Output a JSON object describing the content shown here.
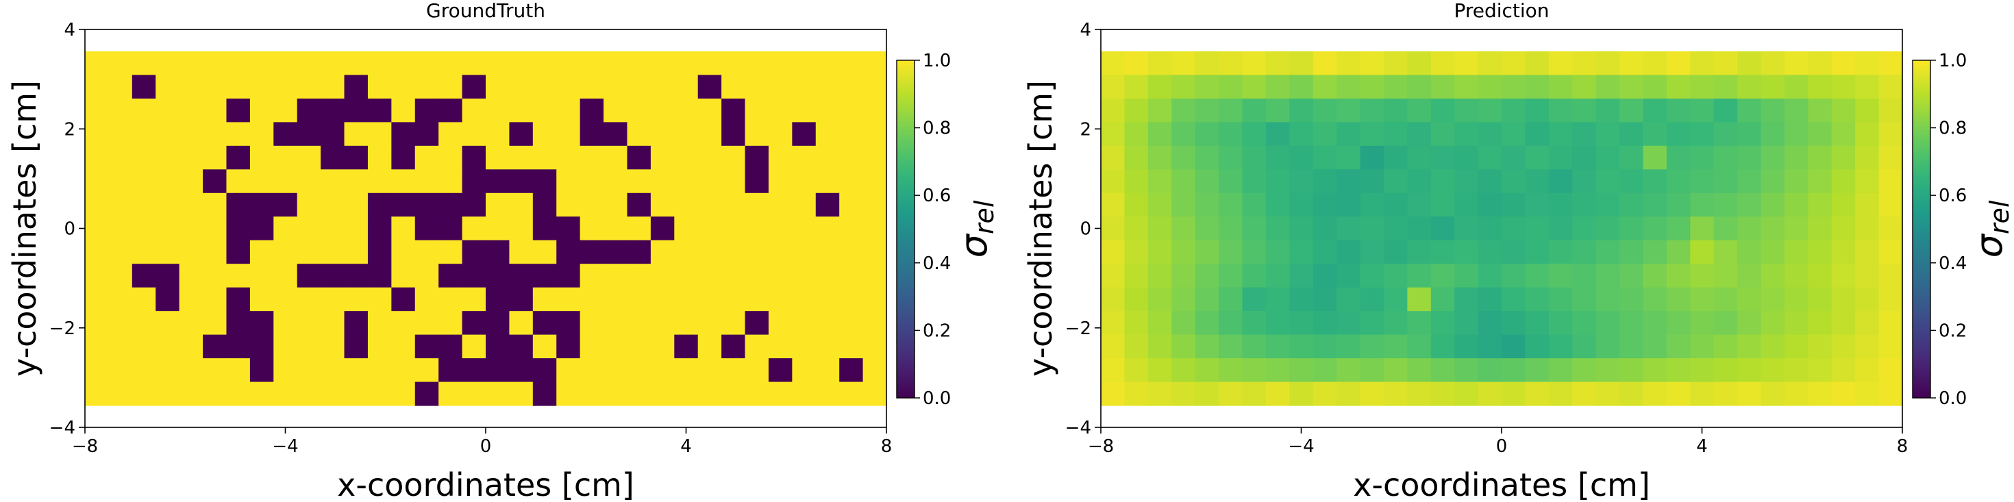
{
  "chart_data": [
    {
      "type": "heatmap",
      "title": "GroundTruth",
      "xlabel": "x-coordinates [cm]",
      "ylabel": "y-coordinates [cm]",
      "colormap": "viridis",
      "x_range": [
        -8,
        8
      ],
      "y_range": [
        -3.56,
        3.56
      ],
      "xlim": [
        -8,
        8
      ],
      "ylim": [
        -4,
        4
      ],
      "xticks": [
        {
          "value": -8,
          "label": "−8"
        },
        {
          "value": -4,
          "label": "−4"
        },
        0,
        4,
        8
      ],
      "yticks": [
        {
          "value": -4,
          "label": "−4"
        },
        {
          "value": -2,
          "label": "−2"
        },
        0,
        2,
        4
      ],
      "colorbar": {
        "range": [
          0,
          1
        ],
        "label": {
          "symbol": "σ",
          "subscript": "rel"
        },
        "ticks": [
          {
            "value": 0,
            "label": "0.0"
          },
          {
            "value": 0.2,
            "label": "0.2"
          },
          {
            "value": 0.4,
            "label": "0.4"
          },
          {
            "value": 0.6,
            "label": "0.6"
          },
          {
            "value": 0.8,
            "label": "0.8"
          },
          {
            "value": 1,
            "label": "1.0"
          }
        ]
      },
      "values": [
        [
          1,
          1,
          1,
          1,
          1,
          1,
          1,
          1,
          1,
          1,
          1,
          1,
          1,
          1,
          1,
          1,
          1,
          1,
          1,
          1,
          1,
          1,
          1,
          1,
          1,
          1,
          1,
          1,
          1,
          1,
          1,
          1,
          1,
          1
        ],
        [
          1,
          1,
          0,
          1,
          1,
          1,
          1,
          1,
          1,
          1,
          1,
          0,
          1,
          1,
          1,
          1,
          0,
          1,
          1,
          1,
          1,
          1,
          1,
          1,
          1,
          1,
          0,
          1,
          1,
          1,
          1,
          1,
          1,
          1
        ],
        [
          1,
          1,
          1,
          1,
          1,
          1,
          0,
          1,
          1,
          0,
          0,
          0,
          0,
          1,
          0,
          0,
          1,
          1,
          1,
          1,
          1,
          0,
          1,
          1,
          1,
          1,
          1,
          0,
          1,
          1,
          1,
          1,
          1,
          1
        ],
        [
          1,
          1,
          1,
          1,
          1,
          1,
          1,
          1,
          0,
          0,
          0,
          1,
          1,
          0,
          0,
          1,
          1,
          1,
          0,
          1,
          1,
          0,
          0,
          1,
          1,
          1,
          1,
          0,
          1,
          1,
          0,
          1,
          1,
          1
        ],
        [
          1,
          1,
          1,
          1,
          1,
          1,
          0,
          1,
          1,
          1,
          0,
          0,
          1,
          0,
          1,
          1,
          0,
          1,
          1,
          1,
          1,
          1,
          1,
          0,
          1,
          1,
          1,
          1,
          0,
          1,
          1,
          1,
          1,
          1
        ],
        [
          1,
          1,
          1,
          1,
          1,
          0,
          1,
          1,
          1,
          1,
          1,
          1,
          1,
          1,
          1,
          1,
          0,
          0,
          0,
          0,
          1,
          1,
          1,
          1,
          1,
          1,
          1,
          1,
          0,
          1,
          1,
          1,
          1,
          1
        ],
        [
          1,
          1,
          1,
          1,
          1,
          1,
          0,
          0,
          0,
          1,
          1,
          1,
          0,
          0,
          0,
          0,
          0,
          1,
          1,
          0,
          1,
          1,
          1,
          0,
          1,
          1,
          1,
          1,
          1,
          1,
          1,
          0,
          1,
          1
        ],
        [
          1,
          1,
          1,
          1,
          1,
          1,
          0,
          0,
          1,
          1,
          1,
          1,
          0,
          1,
          0,
          0,
          1,
          1,
          1,
          0,
          0,
          1,
          1,
          1,
          0,
          1,
          1,
          1,
          1,
          1,
          1,
          1,
          1,
          1
        ],
        [
          1,
          1,
          1,
          1,
          1,
          1,
          0,
          1,
          1,
          1,
          1,
          1,
          0,
          1,
          1,
          1,
          0,
          0,
          1,
          1,
          0,
          0,
          0,
          0,
          1,
          1,
          1,
          1,
          1,
          1,
          1,
          1,
          1,
          1
        ],
        [
          1,
          1,
          0,
          0,
          1,
          1,
          1,
          1,
          1,
          0,
          0,
          0,
          0,
          1,
          1,
          0,
          0,
          0,
          0,
          0,
          0,
          1,
          1,
          1,
          1,
          1,
          1,
          1,
          1,
          1,
          1,
          1,
          1,
          1
        ],
        [
          1,
          1,
          1,
          0,
          1,
          1,
          0,
          1,
          1,
          1,
          1,
          1,
          1,
          0,
          1,
          1,
          1,
          0,
          0,
          1,
          1,
          1,
          1,
          1,
          1,
          1,
          1,
          1,
          1,
          1,
          1,
          1,
          1,
          1
        ],
        [
          1,
          1,
          1,
          1,
          1,
          1,
          0,
          0,
          1,
          1,
          1,
          0,
          1,
          1,
          1,
          1,
          0,
          0,
          1,
          0,
          0,
          1,
          1,
          1,
          1,
          1,
          1,
          1,
          0,
          1,
          1,
          1,
          1,
          1
        ],
        [
          1,
          1,
          1,
          1,
          1,
          0,
          0,
          0,
          1,
          1,
          1,
          0,
          1,
          1,
          0,
          0,
          1,
          0,
          0,
          1,
          0,
          1,
          1,
          1,
          1,
          0,
          1,
          0,
          1,
          1,
          1,
          1,
          1,
          1
        ],
        [
          1,
          1,
          1,
          1,
          1,
          1,
          1,
          0,
          1,
          1,
          1,
          1,
          1,
          1,
          1,
          0,
          0,
          0,
          0,
          0,
          1,
          1,
          1,
          1,
          1,
          1,
          1,
          1,
          1,
          0,
          1,
          1,
          0,
          1
        ],
        [
          1,
          1,
          1,
          1,
          1,
          1,
          1,
          1,
          1,
          1,
          1,
          1,
          1,
          1,
          0,
          1,
          1,
          1,
          1,
          0,
          1,
          1,
          1,
          1,
          1,
          1,
          1,
          1,
          1,
          1,
          1,
          1,
          1,
          1
        ]
      ]
    },
    {
      "type": "heatmap",
      "title": "Prediction",
      "xlabel": "x-coordinates [cm]",
      "ylabel": "y-coordinates [cm]",
      "colormap": "viridis",
      "x_range": [
        -8,
        8
      ],
      "y_range": [
        -3.56,
        3.56
      ],
      "xlim": [
        -8,
        8
      ],
      "ylim": [
        -4,
        4
      ],
      "xticks": [
        {
          "value": -8,
          "label": "−8"
        },
        {
          "value": -4,
          "label": "−4"
        },
        0,
        4,
        8
      ],
      "yticks": [
        {
          "value": -4,
          "label": "−4"
        },
        {
          "value": -2,
          "label": "−2"
        },
        0,
        2,
        4
      ],
      "colorbar": {
        "range": [
          0,
          1
        ],
        "label": {
          "symbol": "σ",
          "subscript": "rel"
        },
        "ticks": [
          {
            "value": 0,
            "label": "0.0"
          },
          {
            "value": 0.2,
            "label": "0.2"
          },
          {
            "value": 0.4,
            "label": "0.4"
          },
          {
            "value": 0.6,
            "label": "0.6"
          },
          {
            "value": 0.8,
            "label": "0.8"
          },
          {
            "value": 1,
            "label": "1.0"
          }
        ]
      },
      "values": [
        [
          0.97,
          0.98,
          0.96,
          0.97,
          0.95,
          0.96,
          0.97,
          0.95,
          0.94,
          0.98,
          0.96,
          0.97,
          0.95,
          0.93,
          0.96,
          0.97,
          0.95,
          0.96,
          0.94,
          0.97,
          0.96,
          0.95,
          0.97,
          0.96,
          0.98,
          0.95,
          0.96,
          0.93,
          0.95,
          0.97,
          0.96,
          0.98,
          0.97,
          0.98
        ],
        [
          0.95,
          0.92,
          0.88,
          0.86,
          0.84,
          0.83,
          0.85,
          0.82,
          0.8,
          0.84,
          0.82,
          0.83,
          0.81,
          0.8,
          0.82,
          0.84,
          0.83,
          0.82,
          0.81,
          0.83,
          0.85,
          0.82,
          0.84,
          0.83,
          0.86,
          0.85,
          0.84,
          0.87,
          0.88,
          0.86,
          0.89,
          0.9,
          0.92,
          0.95
        ],
        [
          0.93,
          0.88,
          0.84,
          0.78,
          0.76,
          0.74,
          0.7,
          0.72,
          0.68,
          0.7,
          0.71,
          0.69,
          0.68,
          0.7,
          0.67,
          0.69,
          0.7,
          0.68,
          0.66,
          0.69,
          0.7,
          0.68,
          0.71,
          0.67,
          0.69,
          0.7,
          0.66,
          0.72,
          0.75,
          0.78,
          0.82,
          0.85,
          0.89,
          0.94
        ],
        [
          0.92,
          0.86,
          0.8,
          0.75,
          0.72,
          0.7,
          0.67,
          0.62,
          0.66,
          0.68,
          0.65,
          0.67,
          0.66,
          0.64,
          0.68,
          0.66,
          0.65,
          0.67,
          0.63,
          0.66,
          0.64,
          0.67,
          0.65,
          0.68,
          0.66,
          0.67,
          0.69,
          0.7,
          0.74,
          0.78,
          0.8,
          0.84,
          0.9,
          0.95
        ],
        [
          0.94,
          0.87,
          0.82,
          0.78,
          0.74,
          0.71,
          0.68,
          0.65,
          0.63,
          0.66,
          0.67,
          0.58,
          0.62,
          0.65,
          0.64,
          0.63,
          0.66,
          0.64,
          0.67,
          0.65,
          0.63,
          0.66,
          0.68,
          0.8,
          0.69,
          0.7,
          0.72,
          0.73,
          0.77,
          0.8,
          0.83,
          0.86,
          0.91,
          0.96
        ],
        [
          0.93,
          0.88,
          0.84,
          0.8,
          0.76,
          0.72,
          0.68,
          0.66,
          0.64,
          0.62,
          0.6,
          0.61,
          0.65,
          0.63,
          0.66,
          0.64,
          0.62,
          0.65,
          0.63,
          0.6,
          0.64,
          0.67,
          0.66,
          0.68,
          0.7,
          0.71,
          0.72,
          0.74,
          0.78,
          0.81,
          0.84,
          0.88,
          0.92,
          0.97
        ],
        [
          0.95,
          0.89,
          0.85,
          0.8,
          0.77,
          0.74,
          0.7,
          0.66,
          0.63,
          0.61,
          0.6,
          0.63,
          0.62,
          0.64,
          0.66,
          0.63,
          0.61,
          0.62,
          0.64,
          0.63,
          0.65,
          0.66,
          0.68,
          0.69,
          0.71,
          0.74,
          0.75,
          0.77,
          0.8,
          0.83,
          0.86,
          0.89,
          0.93,
          0.97
        ],
        [
          0.94,
          0.9,
          0.86,
          0.82,
          0.78,
          0.75,
          0.71,
          0.68,
          0.65,
          0.62,
          0.64,
          0.65,
          0.63,
          0.62,
          0.6,
          0.64,
          0.63,
          0.65,
          0.66,
          0.64,
          0.67,
          0.68,
          0.7,
          0.72,
          0.74,
          0.82,
          0.78,
          0.8,
          0.82,
          0.84,
          0.87,
          0.9,
          0.93,
          0.96
        ],
        [
          0.96,
          0.91,
          0.87,
          0.83,
          0.8,
          0.76,
          0.72,
          0.69,
          0.66,
          0.63,
          0.61,
          0.64,
          0.62,
          0.65,
          0.66,
          0.67,
          0.65,
          0.64,
          0.66,
          0.68,
          0.69,
          0.71,
          0.73,
          0.76,
          0.8,
          0.88,
          0.84,
          0.81,
          0.83,
          0.86,
          0.88,
          0.91,
          0.94,
          0.97
        ],
        [
          0.95,
          0.9,
          0.86,
          0.82,
          0.78,
          0.74,
          0.7,
          0.68,
          0.64,
          0.6,
          0.62,
          0.66,
          0.68,
          0.7,
          0.72,
          0.7,
          0.67,
          0.69,
          0.71,
          0.73,
          0.72,
          0.74,
          0.76,
          0.8,
          0.83,
          0.85,
          0.84,
          0.82,
          0.85,
          0.87,
          0.89,
          0.92,
          0.94,
          0.96
        ],
        [
          0.94,
          0.89,
          0.85,
          0.81,
          0.77,
          0.72,
          0.64,
          0.66,
          0.62,
          0.61,
          0.65,
          0.63,
          0.67,
          0.85,
          0.7,
          0.64,
          0.62,
          0.66,
          0.68,
          0.7,
          0.72,
          0.74,
          0.75,
          0.78,
          0.8,
          0.82,
          0.81,
          0.83,
          0.84,
          0.86,
          0.88,
          0.91,
          0.93,
          0.96
        ],
        [
          0.95,
          0.9,
          0.86,
          0.8,
          0.75,
          0.71,
          0.68,
          0.66,
          0.65,
          0.63,
          0.64,
          0.66,
          0.68,
          0.7,
          0.67,
          0.64,
          0.6,
          0.62,
          0.65,
          0.68,
          0.7,
          0.72,
          0.74,
          0.76,
          0.78,
          0.8,
          0.79,
          0.82,
          0.85,
          0.87,
          0.89,
          0.91,
          0.94,
          0.97
        ],
        [
          0.96,
          0.91,
          0.87,
          0.83,
          0.79,
          0.76,
          0.73,
          0.71,
          0.7,
          0.69,
          0.7,
          0.72,
          0.73,
          0.71,
          0.66,
          0.62,
          0.6,
          0.58,
          0.63,
          0.66,
          0.69,
          0.72,
          0.74,
          0.76,
          0.79,
          0.81,
          0.83,
          0.85,
          0.87,
          0.89,
          0.91,
          0.93,
          0.95,
          0.97
        ],
        [
          0.97,
          0.93,
          0.9,
          0.87,
          0.85,
          0.83,
          0.82,
          0.81,
          0.8,
          0.79,
          0.81,
          0.8,
          0.82,
          0.8,
          0.78,
          0.76,
          0.74,
          0.75,
          0.77,
          0.79,
          0.81,
          0.82,
          0.83,
          0.85,
          0.86,
          0.87,
          0.88,
          0.89,
          0.9,
          0.91,
          0.92,
          0.94,
          0.96,
          0.98
        ],
        [
          0.98,
          0.96,
          0.95,
          0.94,
          0.93,
          0.95,
          0.94,
          0.96,
          0.93,
          0.95,
          0.94,
          0.96,
          0.95,
          0.94,
          0.93,
          0.92,
          0.94,
          0.93,
          0.95,
          0.94,
          0.96,
          0.95,
          0.94,
          0.96,
          0.97,
          0.95,
          0.96,
          0.97,
          0.95,
          0.96,
          0.97,
          0.98,
          0.97,
          0.98
        ]
      ]
    }
  ]
}
